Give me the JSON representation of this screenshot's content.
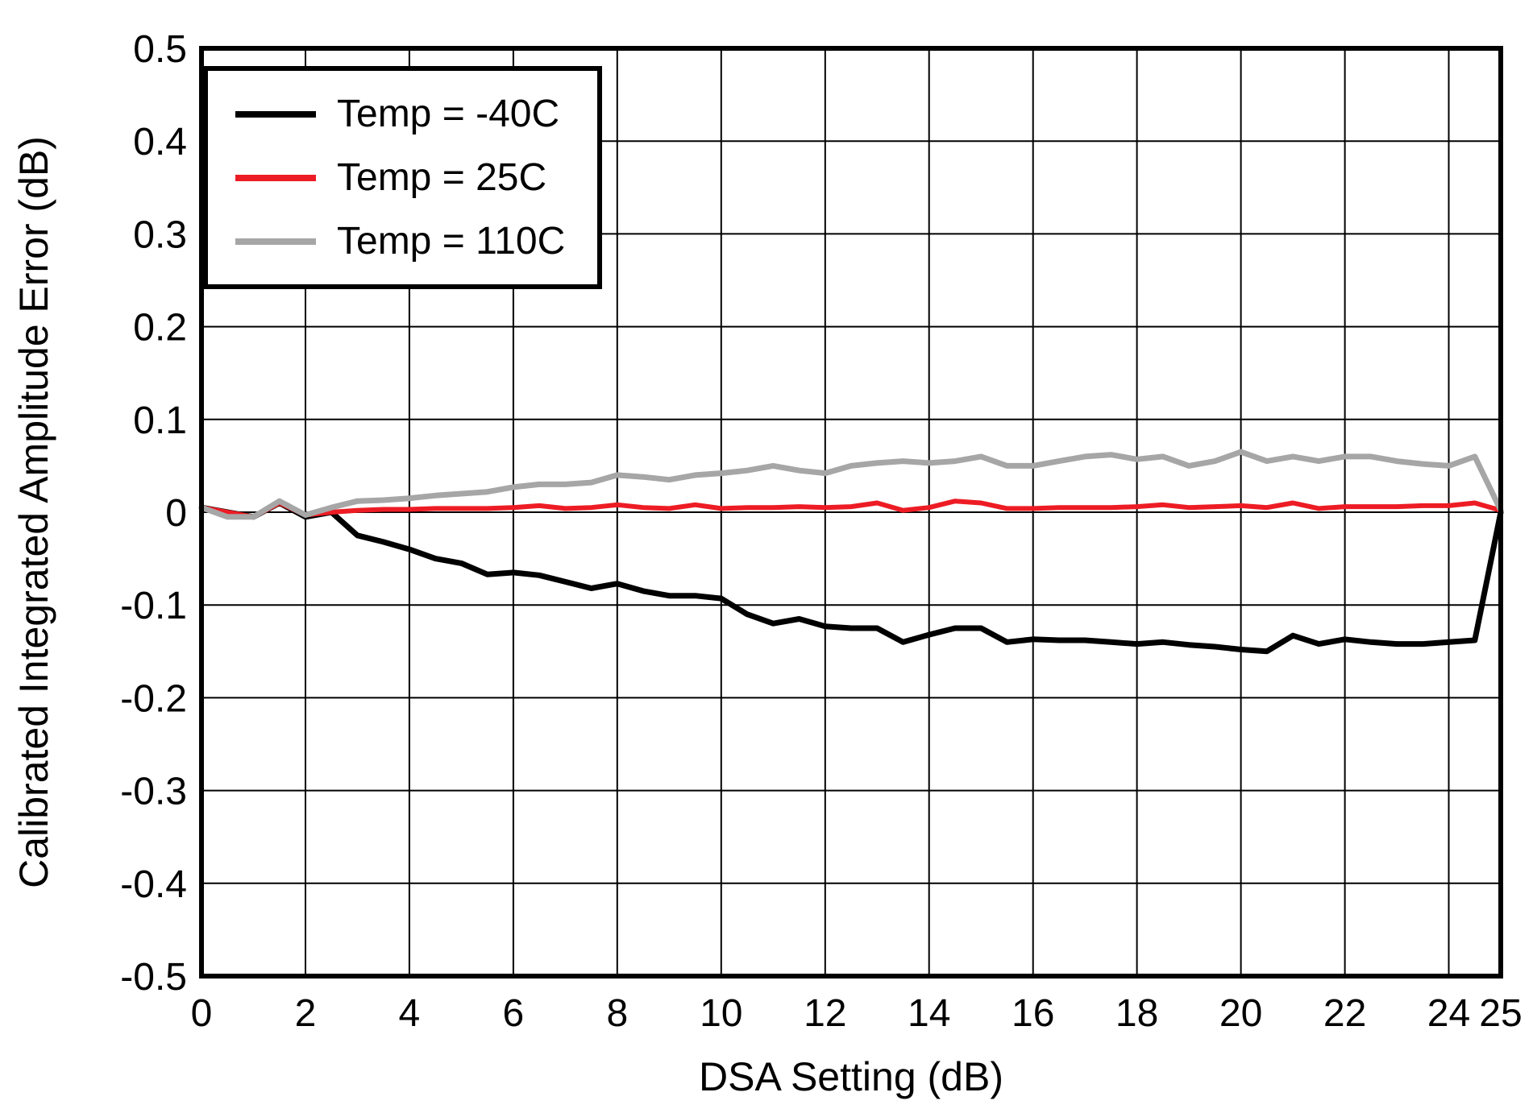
{
  "figure": {
    "background_color": "#ffffff",
    "frame_color": "#000000",
    "grid_color": "#000000"
  },
  "legend": {
    "items": [
      {
        "label": "Temp = -40C",
        "color": "#000000"
      },
      {
        "label": "Temp = 25C",
        "color": "#ed1c24"
      },
      {
        "label": "Temp = 110C",
        "color": "#a6a6a6"
      }
    ]
  },
  "chart_data": {
    "type": "line",
    "title": "",
    "xlabel": "DSA Setting (dB)",
    "ylabel": "Calibrated Integrated Amplitude Error (dB)",
    "xlim": [
      0,
      25
    ],
    "ylim": [
      -0.5,
      0.5
    ],
    "grid": true,
    "legend_position": "top-left",
    "xtick_values": [
      0,
      2,
      4,
      6,
      8,
      10,
      12,
      14,
      16,
      18,
      20,
      22,
      24,
      25
    ],
    "xtick_labels": [
      "0",
      "2",
      "4",
      "6",
      "8",
      "10",
      "12",
      "14",
      "16",
      "18",
      "20",
      "22",
      "24",
      "25"
    ],
    "ytick_values": [
      0.5,
      0.4,
      0.3,
      0.2,
      0.1,
      0,
      -0.1,
      -0.2,
      -0.3,
      -0.4,
      -0.5
    ],
    "ytick_labels": [
      "0.5",
      "0.4",
      "0.3",
      "0.2",
      "0.1",
      "0",
      "-0.1",
      "-0.2",
      "-0.3",
      "-0.4",
      "-0.5"
    ],
    "x": [
      0,
      0.5,
      1,
      1.5,
      2,
      2.5,
      3,
      3.5,
      4,
      4.5,
      5,
      5.5,
      6,
      6.5,
      7,
      7.5,
      8,
      8.5,
      9,
      9.5,
      10,
      10.5,
      11,
      11.5,
      12,
      12.5,
      13,
      13.5,
      14,
      14.5,
      15,
      15.5,
      16,
      16.5,
      17,
      17.5,
      18,
      18.5,
      19,
      19.5,
      20,
      20.5,
      21,
      21.5,
      22,
      22.5,
      23,
      23.5,
      24,
      24.5,
      25
    ],
    "series": [
      {
        "name": "Temp = -40C",
        "color": "#000000",
        "stroke_width": 7,
        "values": [
          0.005,
          0.0,
          -0.005,
          0.01,
          -0.005,
          0.0,
          -0.025,
          -0.032,
          -0.04,
          -0.05,
          -0.055,
          -0.067,
          -0.065,
          -0.068,
          -0.075,
          -0.082,
          -0.077,
          -0.085,
          -0.09,
          -0.09,
          -0.093,
          -0.11,
          -0.12,
          -0.115,
          -0.123,
          -0.125,
          -0.125,
          -0.14,
          -0.132,
          -0.125,
          -0.125,
          -0.14,
          -0.137,
          -0.138,
          -0.138,
          -0.14,
          -0.142,
          -0.14,
          -0.143,
          -0.145,
          -0.148,
          -0.15,
          -0.133,
          -0.142,
          -0.137,
          -0.14,
          -0.142,
          -0.142,
          -0.14,
          -0.138,
          0.0
        ]
      },
      {
        "name": "Temp = 25C",
        "color": "#ed1c24",
        "stroke_width": 6,
        "values": [
          0.005,
          0.0,
          -0.005,
          0.01,
          -0.003,
          0.0,
          0.002,
          0.003,
          0.003,
          0.004,
          0.004,
          0.004,
          0.005,
          0.007,
          0.004,
          0.005,
          0.008,
          0.005,
          0.004,
          0.008,
          0.004,
          0.005,
          0.005,
          0.006,
          0.005,
          0.006,
          0.01,
          0.002,
          0.005,
          0.012,
          0.01,
          0.004,
          0.004,
          0.005,
          0.005,
          0.005,
          0.006,
          0.008,
          0.005,
          0.006,
          0.007,
          0.005,
          0.01,
          0.004,
          0.006,
          0.006,
          0.006,
          0.007,
          0.007,
          0.01,
          0.002
        ]
      },
      {
        "name": "Temp = 110C",
        "color": "#a6a6a6",
        "stroke_width": 7,
        "values": [
          0.005,
          -0.005,
          -0.005,
          0.012,
          -0.003,
          0.005,
          0.012,
          0.013,
          0.015,
          0.018,
          0.02,
          0.022,
          0.027,
          0.03,
          0.03,
          0.032,
          0.04,
          0.038,
          0.035,
          0.04,
          0.042,
          0.045,
          0.05,
          0.045,
          0.042,
          0.05,
          0.053,
          0.055,
          0.053,
          0.055,
          0.06,
          0.05,
          0.05,
          0.055,
          0.06,
          0.062,
          0.057,
          0.06,
          0.05,
          0.055,
          0.065,
          0.055,
          0.06,
          0.055,
          0.06,
          0.06,
          0.055,
          0.052,
          0.05,
          0.06,
          0.002
        ]
      }
    ]
  }
}
